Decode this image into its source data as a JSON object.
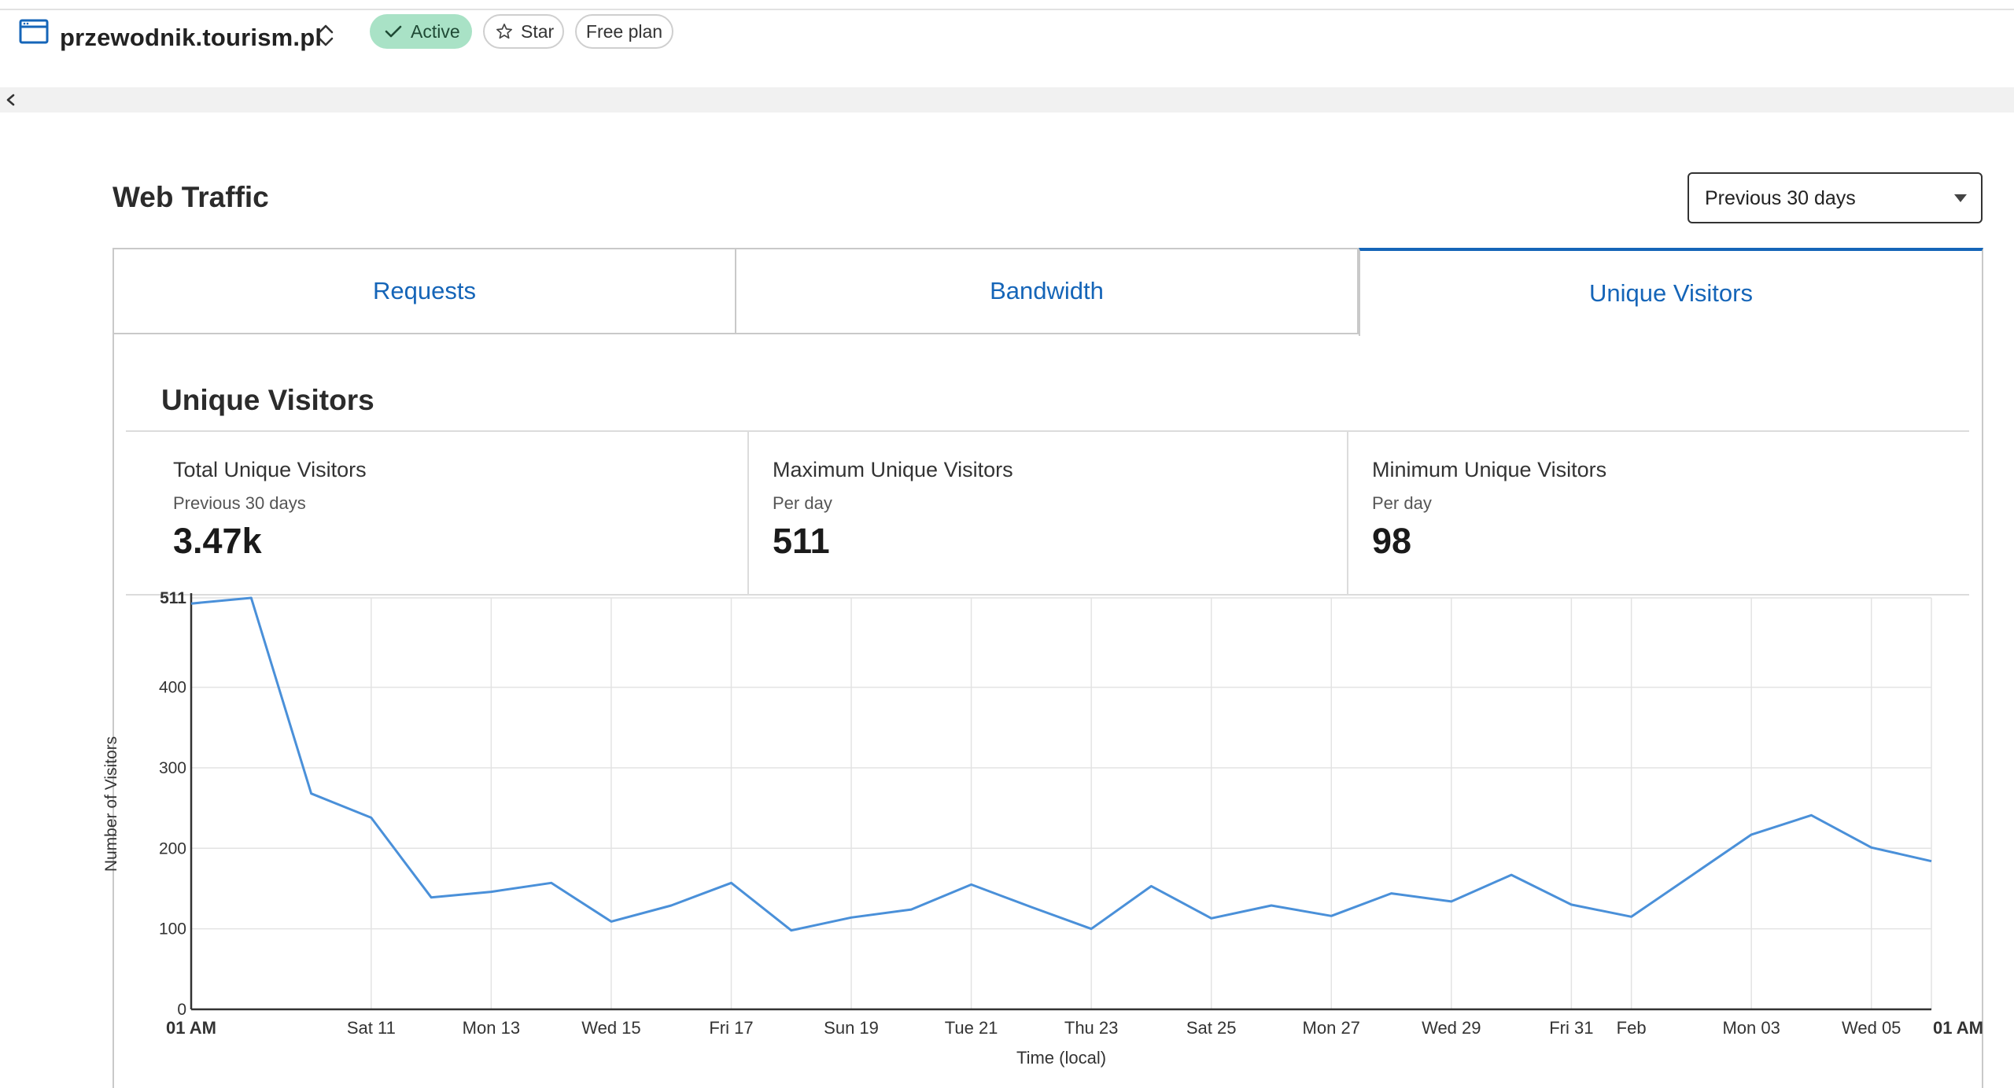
{
  "header": {
    "site_name": "przewodnik.tourism.pl",
    "status_label": "Active",
    "star_label": "Star",
    "plan_label": "Free plan"
  },
  "web_traffic": {
    "title": "Web Traffic",
    "period_select": {
      "value": "Previous 30 days"
    },
    "tabs": [
      {
        "label": "Requests",
        "active": false
      },
      {
        "label": "Bandwidth",
        "active": false
      },
      {
        "label": "Unique Visitors",
        "active": true
      }
    ]
  },
  "panel": {
    "title": "Unique Visitors",
    "stats": [
      {
        "label": "Total Unique Visitors",
        "sub": "Previous 30 days",
        "value": "3.47k"
      },
      {
        "label": "Maximum Unique Visitors",
        "sub": "Per day",
        "value": "511"
      },
      {
        "label": "Minimum Unique Visitors",
        "sub": "Per day",
        "value": "98"
      }
    ]
  },
  "colors": {
    "accent": "#1565b8",
    "line": "#4a90d9",
    "active_pill": "#a9e2c6"
  },
  "chart_data": {
    "type": "line",
    "xlabel": "Time (local)",
    "ylabel": "Number of Visitors",
    "ylim": [
      0,
      511
    ],
    "yticks": [
      {
        "value": 0,
        "label": "0"
      },
      {
        "value": 100,
        "label": "100"
      },
      {
        "value": 200,
        "label": "200"
      },
      {
        "value": 300,
        "label": "300"
      },
      {
        "value": 400,
        "label": "400"
      },
      {
        "value": 511,
        "label": "511",
        "bold": true
      }
    ],
    "xticks": [
      {
        "label": "01 AM",
        "index": 0,
        "bold": true
      },
      {
        "label": "Sat 11",
        "index": 3
      },
      {
        "label": "Mon 13",
        "index": 5
      },
      {
        "label": "Wed 15",
        "index": 7
      },
      {
        "label": "Fri 17",
        "index": 9
      },
      {
        "label": "Sun 19",
        "index": 11
      },
      {
        "label": "Tue 21",
        "index": 13
      },
      {
        "label": "Thu 23",
        "index": 15
      },
      {
        "label": "Sat 25",
        "index": 17
      },
      {
        "label": "Mon 27",
        "index": 19
      },
      {
        "label": "Wed 29",
        "index": 21
      },
      {
        "label": "Fri 31",
        "index": 23
      },
      {
        "label": "Feb",
        "index": 24
      },
      {
        "label": "Mon 03",
        "index": 26
      },
      {
        "label": "Wed 05",
        "index": 28
      },
      {
        "label": "01 AM",
        "index": 29,
        "bold": true
      }
    ],
    "x": [
      "Jan 08",
      "Jan 09",
      "Jan 10",
      "Jan 11",
      "Jan 12",
      "Jan 13",
      "Jan 14",
      "Jan 15",
      "Jan 16",
      "Jan 17",
      "Jan 18",
      "Jan 19",
      "Jan 20",
      "Jan 21",
      "Jan 22",
      "Jan 23",
      "Jan 24",
      "Jan 25",
      "Jan 26",
      "Jan 27",
      "Jan 28",
      "Jan 29",
      "Jan 30",
      "Jan 31",
      "Feb 01",
      "Feb 02",
      "Feb 03",
      "Feb 04",
      "Feb 05",
      "Feb 06"
    ],
    "series": [
      {
        "values": [
          504,
          511,
          268,
          238,
          139,
          146,
          157,
          109,
          129,
          157,
          98,
          114,
          124,
          155,
          127,
          100,
          153,
          113,
          129,
          116,
          144,
          134,
          167,
          130,
          115,
          166,
          217,
          241,
          201,
          184
        ]
      }
    ]
  }
}
